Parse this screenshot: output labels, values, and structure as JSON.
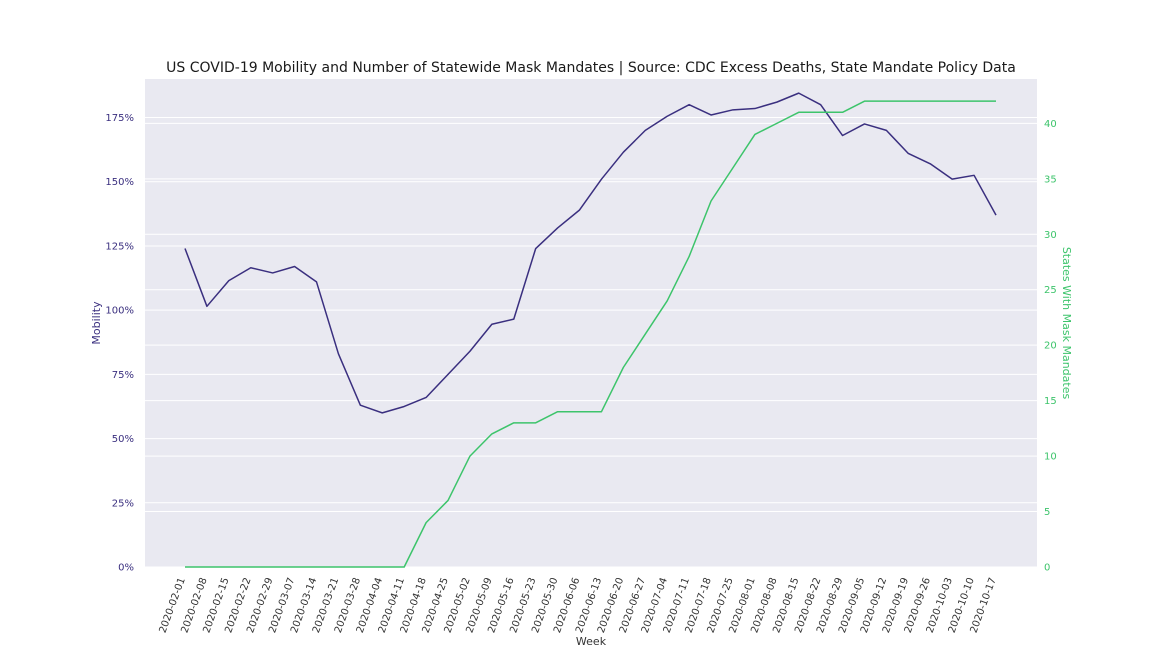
{
  "chart_data": {
    "type": "line",
    "title": "US COVID-19 Mobility and Number of Statewide Mask Mandates | Source: CDC Excess Deaths, State Mandate Policy Data",
    "xlabel": "Week",
    "ylabel_left": "Mobility",
    "ylabel_right": "States With Mask Mandates",
    "grid": true,
    "x": [
      "2020-02-01",
      "2020-02-08",
      "2020-02-15",
      "2020-02-22",
      "2020-02-29",
      "2020-03-07",
      "2020-03-14",
      "2020-03-21",
      "2020-03-28",
      "2020-04-04",
      "2020-04-11",
      "2020-04-18",
      "2020-04-25",
      "2020-05-02",
      "2020-05-09",
      "2020-05-16",
      "2020-05-23",
      "2020-05-30",
      "2020-06-06",
      "2020-06-13",
      "2020-06-20",
      "2020-06-27",
      "2020-07-04",
      "2020-07-11",
      "2020-07-18",
      "2020-07-25",
      "2020-08-01",
      "2020-08-08",
      "2020-08-15",
      "2020-08-22",
      "2020-08-29",
      "2020-09-05",
      "2020-09-12",
      "2020-09-19",
      "2020-09-26",
      "2020-10-03",
      "2020-10-10",
      "2020-10-17"
    ],
    "series": [
      {
        "name": "Mobility",
        "axis": "left",
        "color": "#3a2f7f",
        "values": [
          124,
          101.5,
          111.5,
          116.5,
          114.5,
          117,
          111,
          83,
          63,
          60,
          62.5,
          66,
          75,
          84,
          94.5,
          96.5,
          124,
          132,
          139,
          151,
          161.5,
          170,
          175.5,
          180,
          176,
          178,
          178.5,
          181,
          184.5,
          180,
          168,
          172.5,
          170,
          161,
          157,
          151,
          152.5,
          137
        ]
      },
      {
        "name": "States With Mask Mandates",
        "axis": "right",
        "color": "#3dc46b",
        "values": [
          0,
          0,
          0,
          0,
          0,
          0,
          0,
          0,
          0,
          0,
          0,
          4,
          6,
          10,
          12,
          13,
          13,
          14,
          14,
          14,
          18,
          21,
          24,
          28,
          33,
          36,
          39,
          40,
          41,
          41,
          41,
          42,
          42,
          42,
          42,
          42,
          42,
          42
        ]
      }
    ],
    "ylim_left": [
      0,
      190
    ],
    "yticks_left": [
      "0%",
      "25%",
      "50%",
      "75%",
      "100%",
      "125%",
      "150%",
      "175%"
    ],
    "ylim_right": [
      0,
      44
    ],
    "yticks_right": [
      "0",
      "5",
      "10",
      "15",
      "20",
      "25",
      "30",
      "35",
      "40"
    ],
    "colors": {
      "plot_background": "#e9e9f1",
      "grid": "#ffffff",
      "left_axis": "#3a2f7f",
      "right_axis": "#3dc46b",
      "text": "#333333"
    }
  }
}
